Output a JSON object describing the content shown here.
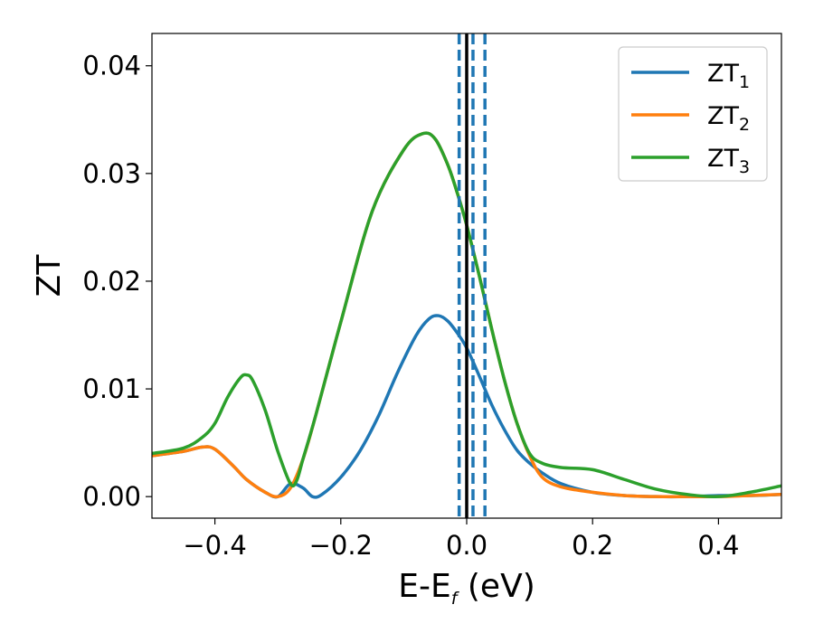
{
  "chart_data": {
    "type": "line",
    "title": "",
    "xlabel": "E-E",
    "xlabel_subscript": "f",
    "xlabel_unit": " (eV)",
    "ylabel": "ZT",
    "xlim": [
      -0.5,
      0.5
    ],
    "ylim": [
      -0.002,
      0.043
    ],
    "x_ticks": [
      -0.4,
      -0.2,
      0.0,
      0.2,
      0.4
    ],
    "x_tick_labels": [
      "−0.4",
      "−0.2",
      "0.0",
      "0.2",
      "0.4"
    ],
    "y_ticks": [
      0.0,
      0.01,
      0.02,
      0.03,
      0.04
    ],
    "y_tick_labels": [
      "0.00",
      "0.01",
      "0.02",
      "0.03",
      "0.04"
    ],
    "grid": false,
    "legend_position": "top-right",
    "vertical_lines": [
      {
        "x": 0.0,
        "style": "solid",
        "color": "#000000"
      },
      {
        "x": -0.012,
        "style": "dashed",
        "color": "#1f77b4"
      },
      {
        "x": 0.01,
        "style": "dashed",
        "color": "#1f77b4"
      },
      {
        "x": 0.029,
        "style": "dashed",
        "color": "#1f77b4"
      }
    ],
    "series": [
      {
        "name": "ZT",
        "subscript": "1",
        "color": "#1f77b4",
        "x": [
          -0.5,
          -0.45,
          -0.42,
          -0.4,
          -0.37,
          -0.35,
          -0.32,
          -0.3,
          -0.28,
          -0.26,
          -0.245,
          -0.23,
          -0.2,
          -0.17,
          -0.14,
          -0.11,
          -0.08,
          -0.06,
          -0.045,
          -0.03,
          -0.015,
          0.0,
          0.02,
          0.04,
          0.06,
          0.08,
          0.1,
          0.12,
          0.15,
          0.2,
          0.25,
          0.3,
          0.35,
          0.4,
          0.45,
          0.5
        ],
        "y": [
          0.0038,
          0.0042,
          0.0046,
          0.0044,
          0.0028,
          0.0016,
          0.0004,
          0.0,
          0.0012,
          0.0008,
          0.0,
          0.0002,
          0.0018,
          0.0042,
          0.0075,
          0.0115,
          0.015,
          0.0165,
          0.0168,
          0.0163,
          0.0152,
          0.0138,
          0.0112,
          0.0085,
          0.0062,
          0.0043,
          0.0031,
          0.0022,
          0.0012,
          0.0004,
          0.0001,
          0.0,
          0.0,
          0.0001,
          0.0001,
          0.0002
        ]
      },
      {
        "name": "ZT",
        "subscript": "2",
        "color": "#ff7f0e",
        "x": [
          -0.5,
          -0.45,
          -0.42,
          -0.4,
          -0.37,
          -0.35,
          -0.32,
          -0.3,
          -0.28,
          -0.26,
          -0.24,
          -0.2,
          -0.15,
          -0.1,
          -0.07,
          -0.05,
          -0.03,
          -0.015,
          0.0,
          0.02,
          0.04,
          0.06,
          0.08,
          0.1,
          0.12,
          0.15,
          0.2,
          0.25,
          0.3,
          0.35,
          0.4,
          0.45,
          0.5
        ],
        "y": [
          0.0038,
          0.0042,
          0.0046,
          0.0044,
          0.0028,
          0.0016,
          0.0004,
          0.0,
          0.0008,
          0.0035,
          0.0075,
          0.0162,
          0.0265,
          0.0322,
          0.0337,
          0.0332,
          0.0308,
          0.0282,
          0.0252,
          0.0205,
          0.0155,
          0.0108,
          0.0068,
          0.0038,
          0.0018,
          0.0009,
          0.0004,
          0.0001,
          0.0,
          0.0,
          0.0,
          0.0001,
          0.0002
        ]
      },
      {
        "name": "ZT",
        "subscript": "3",
        "color": "#2ca02c",
        "x": [
          -0.5,
          -0.45,
          -0.42,
          -0.4,
          -0.38,
          -0.36,
          -0.35,
          -0.34,
          -0.32,
          -0.3,
          -0.28,
          -0.27,
          -0.26,
          -0.24,
          -0.2,
          -0.15,
          -0.1,
          -0.07,
          -0.05,
          -0.03,
          -0.015,
          0.0,
          0.02,
          0.04,
          0.06,
          0.08,
          0.1,
          0.12,
          0.15,
          0.2,
          0.25,
          0.3,
          0.35,
          0.4,
          0.45,
          0.5
        ],
        "y": [
          0.004,
          0.0045,
          0.0055,
          0.0068,
          0.0092,
          0.011,
          0.0113,
          0.0108,
          0.008,
          0.0042,
          0.0012,
          0.0015,
          0.0035,
          0.0075,
          0.0162,
          0.0265,
          0.0322,
          0.0337,
          0.0332,
          0.0308,
          0.0282,
          0.0252,
          0.0205,
          0.0155,
          0.0108,
          0.0068,
          0.004,
          0.0031,
          0.0027,
          0.0025,
          0.0016,
          0.0007,
          0.0002,
          0.0,
          0.0004,
          0.001
        ]
      }
    ]
  }
}
